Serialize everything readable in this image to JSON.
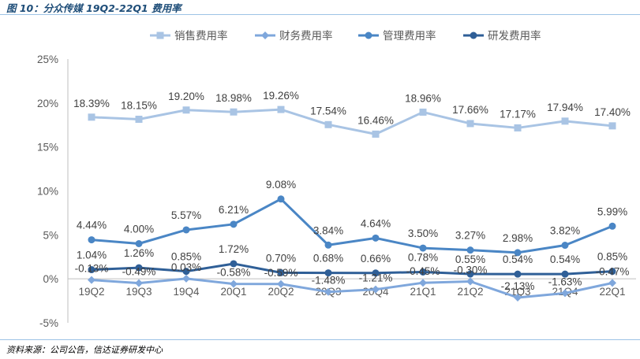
{
  "header": {
    "title": "图 10：分众传媒 19Q2-22Q1 费用率"
  },
  "footer": {
    "source": "资料来源：公司公告，信达证券研发中心"
  },
  "chart_data": {
    "type": "line",
    "categories": [
      "19Q2",
      "19Q3",
      "19Q4",
      "20Q1",
      "20Q2",
      "20Q3",
      "20Q4",
      "21Q1",
      "21Q2",
      "21Q3",
      "21Q4",
      "22Q1"
    ],
    "ylim": [
      -5,
      25
    ],
    "yticks": [
      -5,
      0,
      5,
      10,
      15,
      20,
      25
    ],
    "ytick_labels": [
      "-5%",
      "0%",
      "5%",
      "10%",
      "15%",
      "20%",
      "25%"
    ],
    "grid": false,
    "legend_position": "top",
    "series": [
      {
        "name": "销售费用率",
        "color": "#a9c4e4",
        "marker": "square",
        "values": [
          18.39,
          18.15,
          19.2,
          18.98,
          19.26,
          17.54,
          16.46,
          18.96,
          17.66,
          17.17,
          17.94,
          17.4
        ],
        "labels": [
          "18.39%",
          "18.15%",
          "19.20%",
          "18.98%",
          "19.26%",
          "17.54%",
          "16.46%",
          "18.96%",
          "17.66%",
          "17.17%",
          "17.94%",
          "17.40%"
        ]
      },
      {
        "name": "财务费用率",
        "color": "#7fa7dc",
        "marker": "diamond",
        "values": [
          -0.13,
          -0.49,
          0.03,
          -0.58,
          -0.59,
          -1.48,
          -1.21,
          -0.45,
          -0.3,
          -2.13,
          -1.63,
          -0.47
        ],
        "labels": [
          "-0.13%",
          "-0.49%",
          "0.03%",
          "-0.58%",
          "-0.59%",
          "-1.48%",
          "-1.21%",
          "-0.45%",
          "-0.30%",
          "-2.13%",
          "-1.63%",
          "-0.47%"
        ]
      },
      {
        "name": "管理费用率",
        "color": "#4a86c5",
        "marker": "circle",
        "values": [
          4.44,
          4.0,
          5.57,
          6.21,
          9.08,
          3.84,
          4.64,
          3.5,
          3.27,
          2.98,
          3.82,
          5.99
        ],
        "labels": [
          "4.44%",
          "4.00%",
          "5.57%",
          "6.21%",
          "9.08%",
          "3.84%",
          "4.64%",
          "3.50%",
          "3.27%",
          "2.98%",
          "3.82%",
          "5.99%"
        ]
      },
      {
        "name": "研发费用率",
        "color": "#2f5f97",
        "marker": "circle",
        "values": [
          1.04,
          1.26,
          0.85,
          1.72,
          0.7,
          0.68,
          0.66,
          0.78,
          0.55,
          0.54,
          0.54,
          0.85
        ],
        "labels": [
          "1.04%",
          "1.26%",
          "0.85%",
          "1.72%",
          "0.70%",
          "0.68%",
          "0.66%",
          "0.78%",
          "0.55%",
          "0.54%",
          "0.54%",
          "0.85%"
        ]
      }
    ]
  }
}
